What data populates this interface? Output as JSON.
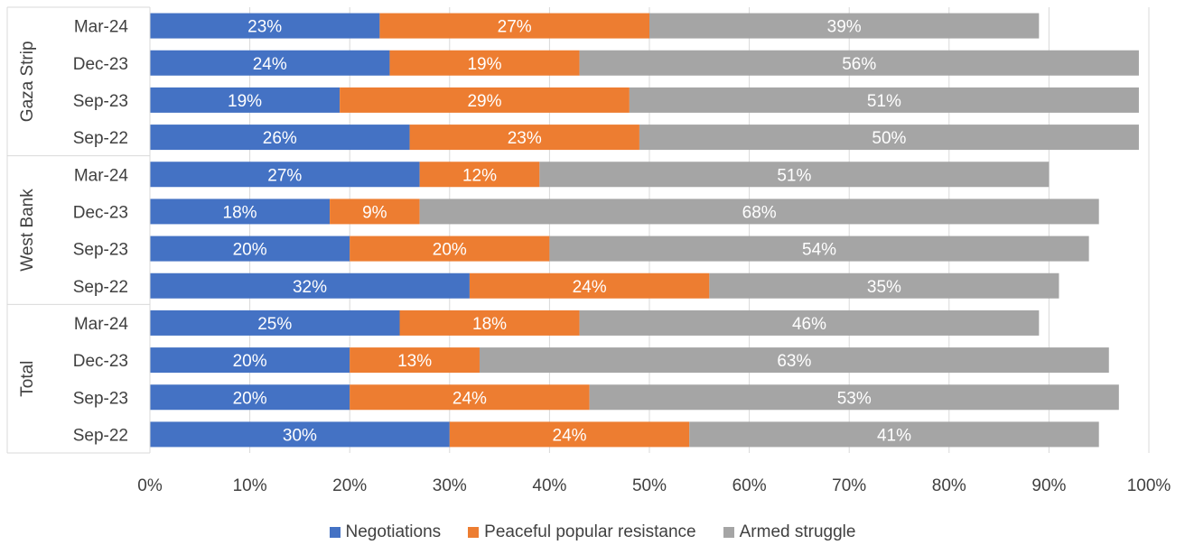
{
  "chart_data": {
    "type": "bar",
    "orientation": "horizontal",
    "stacked": true,
    "groups": [
      {
        "name": "Gaza Strip",
        "categories": [
          "Mar-24",
          "Dec-23",
          "Sep-23",
          "Sep-22"
        ]
      },
      {
        "name": "West Bank",
        "categories": [
          "Mar-24",
          "Dec-23",
          "Sep-23",
          "Sep-22"
        ]
      },
      {
        "name": "Total",
        "categories": [
          "Mar-24",
          "Dec-23",
          "Sep-23",
          "Sep-22"
        ]
      }
    ],
    "series": [
      {
        "name": "Negotiations",
        "color": "#4472C4",
        "values": [
          23,
          24,
          19,
          26,
          27,
          18,
          20,
          32,
          25,
          20,
          20,
          30
        ],
        "labels": [
          "23%",
          "24%",
          "19%",
          "26%",
          "27%",
          "18%",
          "20%",
          "32%",
          "25%",
          "20%",
          "20%",
          "30%"
        ]
      },
      {
        "name": "Peaceful popular resistance",
        "color": "#ED7D31",
        "values": [
          27,
          19,
          29,
          23,
          12,
          9,
          20,
          24,
          18,
          13,
          24,
          24
        ],
        "labels": [
          "27%",
          "19%",
          "29%",
          "23%",
          "12%",
          "9%",
          "20%",
          "24%",
          "18%",
          "13%",
          "24%",
          "24%"
        ]
      },
      {
        "name": "Armed struggle",
        "color": "#A5A5A5",
        "values": [
          39,
          56,
          51,
          50,
          51,
          68,
          54,
          35,
          46,
          63,
          53,
          41
        ],
        "labels": [
          "39%",
          "56%",
          "51%",
          "50%",
          "51%",
          "68%",
          "54%",
          "35%",
          "46%",
          "63%",
          "53%",
          "41%"
        ]
      }
    ],
    "xlim": [
      0,
      100
    ],
    "x_ticks": [
      "0%",
      "10%",
      "20%",
      "30%",
      "40%",
      "50%",
      "60%",
      "70%",
      "80%",
      "90%",
      "100%"
    ],
    "grid": true,
    "legend": "bottom",
    "title": "",
    "xlabel": "",
    "ylabel": ""
  }
}
